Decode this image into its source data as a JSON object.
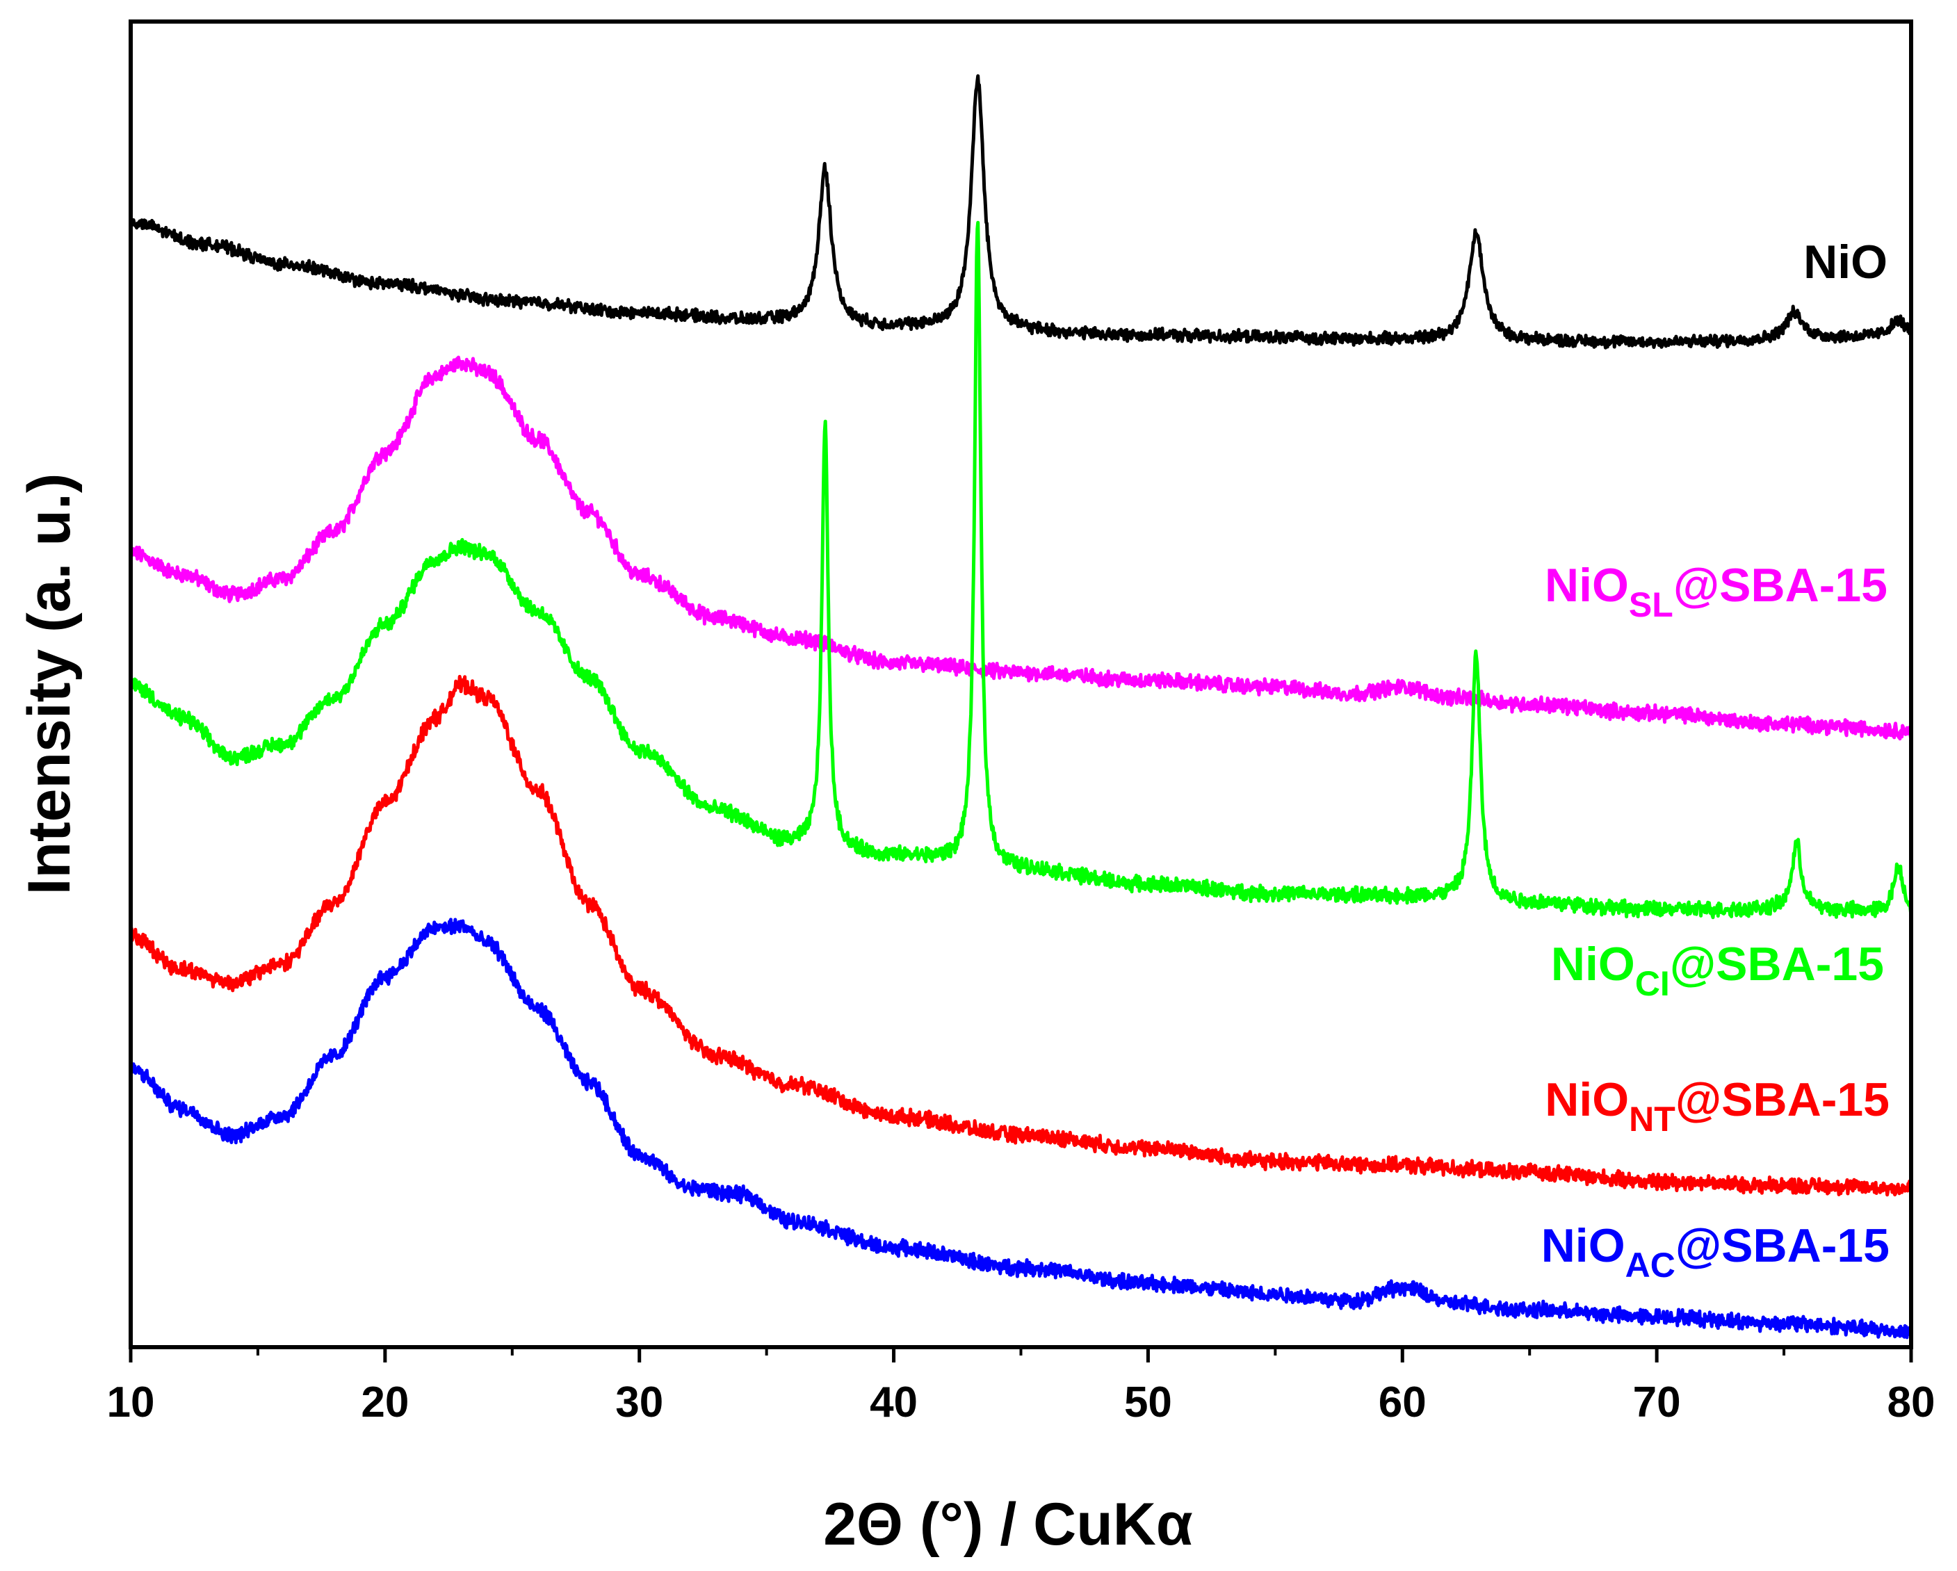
{
  "chart_data": {
    "type": "line",
    "title": "",
    "xlabel": "2Θ (°) / CuKα",
    "ylabel": "Intensity (a. u.)",
    "xlim": [
      10,
      80
    ],
    "ylim": [
      0,
      100
    ],
    "xticks": [
      10,
      20,
      30,
      40,
      50,
      60,
      70,
      80
    ],
    "xtick_labels": [
      "10",
      "20",
      "30",
      "40",
      "50",
      "60",
      "70",
      "80"
    ],
    "y_ticks_shown": false,
    "grid": false,
    "series": [
      {
        "name": "NiO",
        "label_main": "NiO",
        "label_sub": "",
        "label_suffix": "",
        "color": "#000000",
        "baseline": [
          [
            10,
            84.8
          ],
          [
            13,
            83.2
          ],
          [
            16,
            81.7
          ],
          [
            20,
            80.2
          ],
          [
            25,
            78.9
          ],
          [
            30,
            78.0
          ],
          [
            35,
            77.4
          ],
          [
            40,
            76.9
          ],
          [
            50,
            76.3
          ],
          [
            60,
            76.0
          ],
          [
            70,
            75.8
          ],
          [
            80,
            76.2
          ]
        ],
        "peaks": [
          {
            "x": 37.3,
            "height": 11.7,
            "width": 0.3
          },
          {
            "x": 43.3,
            "height": 18.9,
            "width": 0.3
          },
          {
            "x": 62.9,
            "height": 8.0,
            "width": 0.35
          },
          {
            "x": 75.4,
            "height": 2.0,
            "width": 0.4
          },
          {
            "x": 79.5,
            "height": 1.2,
            "width": 0.4
          }
        ],
        "noise": 0.35
      },
      {
        "name": "NiO_SL@SBA-15",
        "label_main": "NiO",
        "label_sub": "SL",
        "label_suffix": "@SBA-15",
        "color": "#ff00ff",
        "baseline": [
          [
            10,
            59.9
          ],
          [
            12,
            58.3
          ],
          [
            14,
            56.8
          ],
          [
            16,
            58.0
          ],
          [
            18,
            61.5
          ],
          [
            20,
            67.5
          ],
          [
            22,
            73.3
          ],
          [
            23,
            74.3
          ],
          [
            24,
            73.5
          ],
          [
            26,
            68.5
          ],
          [
            28,
            63.0
          ],
          [
            30,
            58.2
          ],
          [
            33,
            55.0
          ],
          [
            36,
            53.5
          ],
          [
            40,
            51.6
          ],
          [
            45,
            50.9
          ],
          [
            50,
            50.3
          ],
          [
            55,
            49.8
          ],
          [
            58,
            49.3
          ],
          [
            60,
            49.8
          ],
          [
            62,
            49.0
          ],
          [
            65,
            48.5
          ],
          [
            70,
            47.8
          ],
          [
            75,
            47.0
          ],
          [
            80,
            46.5
          ]
        ],
        "peaks": [],
        "noise": 0.45
      },
      {
        "name": "NiO_CI@SBA-15",
        "label_main": "NiO",
        "label_sub": "CI",
        "label_suffix": "@SBA-15",
        "color": "#00ff00",
        "baseline": [
          [
            10,
            50.0
          ],
          [
            12,
            47.5
          ],
          [
            14,
            44.5
          ],
          [
            16,
            45.5
          ],
          [
            18,
            49.0
          ],
          [
            20,
            54.5
          ],
          [
            22,
            59.5
          ],
          [
            23,
            60.4
          ],
          [
            24,
            59.8
          ],
          [
            26,
            55.5
          ],
          [
            28,
            50.5
          ],
          [
            30,
            45.0
          ],
          [
            33,
            40.5
          ],
          [
            36,
            38.0
          ],
          [
            40,
            37.0
          ],
          [
            45,
            36.0
          ],
          [
            50,
            34.9
          ],
          [
            55,
            34.2
          ],
          [
            60,
            34.0
          ],
          [
            65,
            33.5
          ],
          [
            70,
            33.0
          ],
          [
            75,
            33.0
          ],
          [
            80,
            32.8
          ]
        ],
        "peaks": [
          {
            "x": 37.3,
            "height": 32.0,
            "width": 0.15
          },
          {
            "x": 43.3,
            "height": 48.5,
            "width": 0.15
          },
          {
            "x": 62.9,
            "height": 18.7,
            "width": 0.2
          },
          {
            "x": 75.5,
            "height": 5.0,
            "width": 0.22
          },
          {
            "x": 79.5,
            "height": 3.5,
            "width": 0.22
          }
        ],
        "noise": 0.45
      },
      {
        "name": "NiO_NT@SBA-15",
        "label_main": "NiO",
        "label_sub": "NT",
        "label_suffix": "@SBA-15",
        "color": "#ff0000",
        "baseline": [
          [
            10,
            31.0
          ],
          [
            12,
            28.5
          ],
          [
            14,
            27.5
          ],
          [
            16,
            29.0
          ],
          [
            18,
            33.5
          ],
          [
            20,
            41.0
          ],
          [
            22,
            47.5
          ],
          [
            23,
            50.0
          ],
          [
            24,
            49.0
          ],
          [
            26,
            42.0
          ],
          [
            28,
            33.5
          ],
          [
            30,
            27.0
          ],
          [
            33,
            22.0
          ],
          [
            36,
            19.8
          ],
          [
            40,
            17.4
          ],
          [
            45,
            16.0
          ],
          [
            50,
            15.0
          ],
          [
            55,
            14.0
          ],
          [
            60,
            13.7
          ],
          [
            65,
            13.2
          ],
          [
            70,
            12.5
          ],
          [
            75,
            12.2
          ],
          [
            80,
            12.0
          ]
        ],
        "peaks": [],
        "noise": 0.45
      },
      {
        "name": "NiO_AC@SBA-15",
        "label_main": "NiO",
        "label_sub": "AC",
        "label_suffix": "@SBA-15",
        "color": "#0000ff",
        "baseline": [
          [
            10,
            21.0
          ],
          [
            12,
            18.0
          ],
          [
            14,
            16.0
          ],
          [
            16,
            17.5
          ],
          [
            18,
            22.0
          ],
          [
            20,
            28.0
          ],
          [
            22,
            31.6
          ],
          [
            23,
            31.8
          ],
          [
            24,
            30.5
          ],
          [
            26,
            25.5
          ],
          [
            28,
            20.0
          ],
          [
            30,
            14.5
          ],
          [
            32,
            12.0
          ],
          [
            34,
            11.5
          ],
          [
            36,
            9.5
          ],
          [
            40,
            7.5
          ],
          [
            45,
            6.0
          ],
          [
            50,
            4.8
          ],
          [
            55,
            4.0
          ],
          [
            58,
            3.5
          ],
          [
            60,
            4.5
          ],
          [
            62,
            3.3
          ],
          [
            65,
            2.8
          ],
          [
            70,
            2.3
          ],
          [
            75,
            1.8
          ],
          [
            80,
            1.2
          ]
        ],
        "peaks": [],
        "noise": 0.45
      }
    ],
    "label_positions": "right side, next to each curve"
  }
}
